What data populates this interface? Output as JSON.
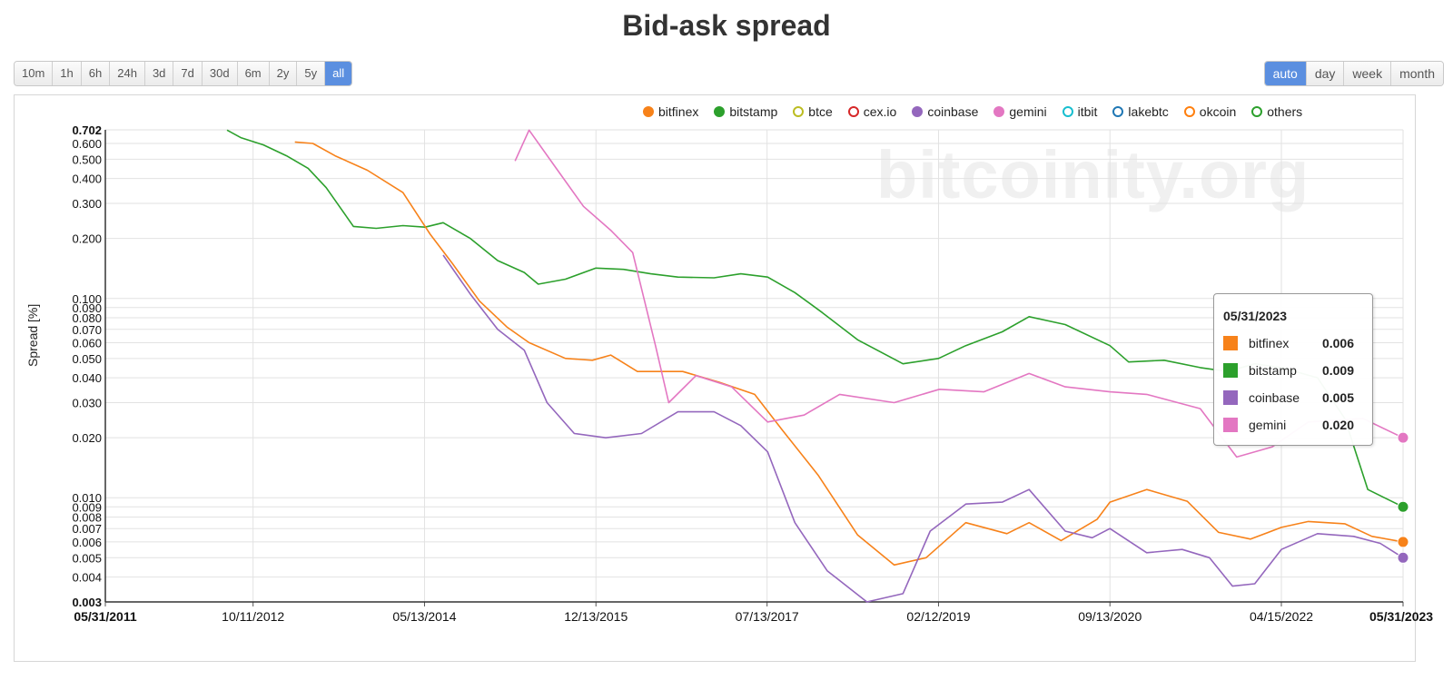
{
  "title": "Bid-ask spread",
  "range_buttons": [
    "10m",
    "1h",
    "6h",
    "24h",
    "3d",
    "7d",
    "30d",
    "6m",
    "2y",
    "5y",
    "all"
  ],
  "range_active": "all",
  "interval_buttons": [
    "auto",
    "day",
    "week",
    "month"
  ],
  "interval_active": "auto",
  "watermark": "bitcoinity.org",
  "legend": [
    {
      "name": "bitfinex",
      "color": "#f7821a",
      "filled": true
    },
    {
      "name": "bitstamp",
      "color": "#2ca02c",
      "filled": true
    },
    {
      "name": "btce",
      "color": "#bcbd22",
      "filled": false
    },
    {
      "name": "cex.io",
      "color": "#d62728",
      "filled": false
    },
    {
      "name": "coinbase",
      "color": "#9467bd",
      "filled": true
    },
    {
      "name": "gemini",
      "color": "#e377c2",
      "filled": true
    },
    {
      "name": "itbit",
      "color": "#17becf",
      "filled": false
    },
    {
      "name": "lakebtc",
      "color": "#1f77b4",
      "filled": false
    },
    {
      "name": "okcoin",
      "color": "#ff7f0e",
      "filled": false
    },
    {
      "name": "others",
      "color": "#2ca02c",
      "filled": false
    }
  ],
  "tooltip": {
    "date": "05/31/2023",
    "rows": [
      {
        "name": "bitfinex",
        "value": "0.006",
        "color": "#f7821a"
      },
      {
        "name": "bitstamp",
        "value": "0.009",
        "color": "#2ca02c"
      },
      {
        "name": "coinbase",
        "value": "0.005",
        "color": "#9467bd"
      },
      {
        "name": "gemini",
        "value": "0.020",
        "color": "#e377c2"
      }
    ]
  },
  "chart_data": {
    "type": "line",
    "title": "Bid-ask spread",
    "ylabel": "Spread [%]",
    "y_scale": "log",
    "ylim": [
      0.003,
      0.702
    ],
    "xlim": [
      "2011-05-31",
      "2023-05-31"
    ],
    "x_ticks": [
      "05/31/2011",
      "10/11/2012",
      "05/13/2014",
      "12/13/2015",
      "07/13/2017",
      "02/12/2019",
      "09/13/2020",
      "04/15/2022",
      "05/31/2023"
    ],
    "y_ticks": [
      "0.003",
      "0.004",
      "0.005",
      "0.006",
      "0.007",
      "0.008",
      "0.009",
      "0.010",
      "0.020",
      "0.030",
      "0.040",
      "0.050",
      "0.060",
      "0.070",
      "0.080",
      "0.090",
      "0.100",
      "0.200",
      "0.300",
      "0.400",
      "0.500",
      "0.600",
      "0.702"
    ],
    "series": [
      {
        "name": "bitstamp",
        "color": "#2ca02c",
        "points": [
          [
            "2012-07-15",
            0.7
          ],
          [
            "2012-09-01",
            0.64
          ],
          [
            "2012-11-15",
            0.59
          ],
          [
            "2013-02-01",
            0.52
          ],
          [
            "2013-04-15",
            0.45
          ],
          [
            "2013-06-15",
            0.36
          ],
          [
            "2013-09-15",
            0.23
          ],
          [
            "2013-12-01",
            0.225
          ],
          [
            "2014-03-01",
            0.232
          ],
          [
            "2014-05-15",
            0.228
          ],
          [
            "2014-07-15",
            0.24
          ],
          [
            "2014-10-15",
            0.2
          ],
          [
            "2015-01-15",
            0.155
          ],
          [
            "2015-04-15",
            0.135
          ],
          [
            "2015-06-01",
            0.118
          ],
          [
            "2015-09-01",
            0.125
          ],
          [
            "2015-12-13",
            0.142
          ],
          [
            "2016-03-15",
            0.14
          ],
          [
            "2016-06-15",
            0.133
          ],
          [
            "2016-09-15",
            0.128
          ],
          [
            "2017-01-15",
            0.127
          ],
          [
            "2017-04-15",
            0.133
          ],
          [
            "2017-07-15",
            0.128
          ],
          [
            "2017-10-15",
            0.107
          ],
          [
            "2018-01-15",
            0.085
          ],
          [
            "2018-05-15",
            0.062
          ],
          [
            "2018-10-15",
            0.047
          ],
          [
            "2019-02-12",
            0.05
          ],
          [
            "2019-05-15",
            0.058
          ],
          [
            "2019-09-15",
            0.068
          ],
          [
            "2019-12-15",
            0.081
          ],
          [
            "2020-04-15",
            0.074
          ],
          [
            "2020-09-13",
            0.058
          ],
          [
            "2020-11-15",
            0.048
          ],
          [
            "2021-03-15",
            0.049
          ],
          [
            "2021-07-15",
            0.045
          ],
          [
            "2021-10-15",
            0.043
          ],
          [
            "2022-01-15",
            0.047
          ],
          [
            "2022-04-15",
            0.045
          ],
          [
            "2022-08-15",
            0.04
          ],
          [
            "2022-11-15",
            0.025
          ],
          [
            "2023-02-01",
            0.011
          ],
          [
            "2023-05-31",
            0.009
          ]
        ]
      },
      {
        "name": "bitfinex",
        "color": "#f7821a",
        "points": [
          [
            "2013-03-01",
            0.61
          ],
          [
            "2013-05-01",
            0.6
          ],
          [
            "2013-07-15",
            0.52
          ],
          [
            "2013-11-01",
            0.44
          ],
          [
            "2014-03-01",
            0.34
          ],
          [
            "2014-06-01",
            0.21
          ],
          [
            "2014-08-15",
            0.15
          ],
          [
            "2014-11-15",
            0.097
          ],
          [
            "2015-02-15",
            0.072
          ],
          [
            "2015-05-01",
            0.06
          ],
          [
            "2015-09-01",
            0.05
          ],
          [
            "2015-12-01",
            0.049
          ],
          [
            "2016-02-01",
            0.052
          ],
          [
            "2016-05-01",
            0.043
          ],
          [
            "2016-10-01",
            0.043
          ],
          [
            "2017-02-01",
            0.038
          ],
          [
            "2017-06-01",
            0.033
          ],
          [
            "2017-09-01",
            0.022
          ],
          [
            "2018-01-01",
            0.013
          ],
          [
            "2018-05-15",
            0.0065
          ],
          [
            "2018-09-15",
            0.0046
          ],
          [
            "2019-01-01",
            0.005
          ],
          [
            "2019-05-15",
            0.0075
          ],
          [
            "2019-10-01",
            0.0066
          ],
          [
            "2019-12-15",
            0.0075
          ],
          [
            "2020-04-01",
            0.0061
          ],
          [
            "2020-08-01",
            0.0078
          ],
          [
            "2020-09-13",
            0.0095
          ],
          [
            "2021-01-15",
            0.011
          ],
          [
            "2021-06-01",
            0.0096
          ],
          [
            "2021-09-15",
            0.0067
          ],
          [
            "2022-01-01",
            0.0062
          ],
          [
            "2022-04-15",
            0.0071
          ],
          [
            "2022-07-15",
            0.0076
          ],
          [
            "2022-11-15",
            0.0074
          ],
          [
            "2023-02-15",
            0.0064
          ],
          [
            "2023-05-31",
            0.006
          ]
        ]
      },
      {
        "name": "coinbase",
        "color": "#9467bd",
        "points": [
          [
            "2014-07-15",
            0.165
          ],
          [
            "2014-10-15",
            0.105
          ],
          [
            "2015-01-15",
            0.07
          ],
          [
            "2015-04-15",
            0.055
          ],
          [
            "2015-07-01",
            0.03
          ],
          [
            "2015-10-01",
            0.021
          ],
          [
            "2016-01-15",
            0.02
          ],
          [
            "2016-05-15",
            0.021
          ],
          [
            "2016-09-15",
            0.027
          ],
          [
            "2017-01-15",
            0.027
          ],
          [
            "2017-04-15",
            0.023
          ],
          [
            "2017-07-15",
            0.017
          ],
          [
            "2017-10-15",
            0.0075
          ],
          [
            "2018-02-01",
            0.0043
          ],
          [
            "2018-06-15",
            0.003
          ],
          [
            "2018-10-15",
            0.0033
          ],
          [
            "2019-01-15",
            0.0068
          ],
          [
            "2019-05-15",
            0.0093
          ],
          [
            "2019-09-15",
            0.0095
          ],
          [
            "2019-12-15",
            0.011
          ],
          [
            "2020-04-15",
            0.0068
          ],
          [
            "2020-07-15",
            0.0063
          ],
          [
            "2020-09-13",
            0.007
          ],
          [
            "2021-01-15",
            0.0053
          ],
          [
            "2021-05-15",
            0.0055
          ],
          [
            "2021-08-15",
            0.005
          ],
          [
            "2021-11-01",
            0.0036
          ],
          [
            "2022-01-15",
            0.0037
          ],
          [
            "2022-04-15",
            0.0055
          ],
          [
            "2022-08-15",
            0.0066
          ],
          [
            "2022-12-15",
            0.0064
          ],
          [
            "2023-03-15",
            0.0059
          ],
          [
            "2023-05-31",
            0.005
          ]
        ]
      },
      {
        "name": "gemini",
        "color": "#e377c2",
        "points": [
          [
            "2015-03-15",
            0.49
          ],
          [
            "2015-05-01",
            0.7
          ],
          [
            "2015-08-01",
            0.45
          ],
          [
            "2015-11-01",
            0.29
          ],
          [
            "2016-02-01",
            0.22
          ],
          [
            "2016-04-15",
            0.17
          ],
          [
            "2016-07-01",
            0.058
          ],
          [
            "2016-08-15",
            0.03
          ],
          [
            "2016-11-15",
            0.041
          ],
          [
            "2017-03-15",
            0.036
          ],
          [
            "2017-07-15",
            0.024
          ],
          [
            "2017-11-15",
            0.026
          ],
          [
            "2018-03-15",
            0.033
          ],
          [
            "2018-09-15",
            0.03
          ],
          [
            "2019-02-15",
            0.035
          ],
          [
            "2019-07-15",
            0.034
          ],
          [
            "2019-12-15",
            0.042
          ],
          [
            "2020-04-15",
            0.036
          ],
          [
            "2020-09-13",
            0.034
          ],
          [
            "2021-01-15",
            0.033
          ],
          [
            "2021-07-15",
            0.028
          ],
          [
            "2021-11-15",
            0.016
          ],
          [
            "2022-03-15",
            0.018
          ],
          [
            "2022-07-15",
            0.024
          ],
          [
            "2023-01-15",
            0.025
          ],
          [
            "2023-05-31",
            0.02
          ]
        ]
      }
    ]
  }
}
